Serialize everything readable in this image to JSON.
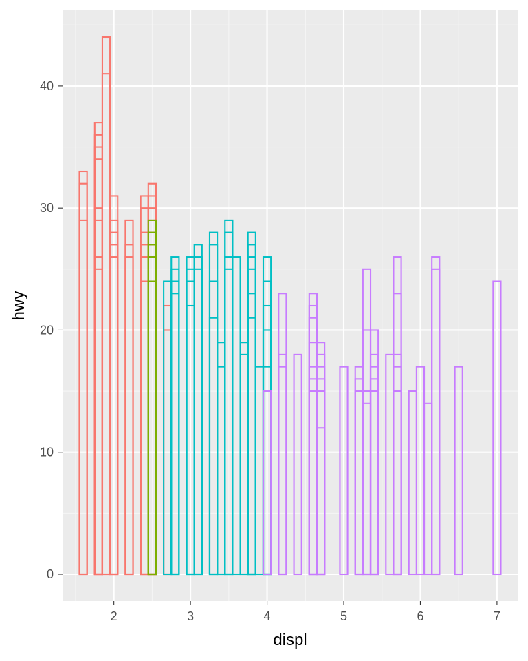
{
  "chart_data": {
    "type": "bar",
    "title": "",
    "xlabel": "displ",
    "ylabel": "hwy",
    "xlim": [
      1.33,
      7.27
    ],
    "ylim": [
      -2.2,
      46.2
    ],
    "x_ticks": [
      2,
      3,
      4,
      5,
      6,
      7
    ],
    "y_ticks": [
      0,
      10,
      20,
      30,
      40
    ],
    "grid": true,
    "legend": "none",
    "bar_width": 0.1,
    "style": "outlined stacked bars, one outlined segment per observation",
    "colors": {
      "panel_background": "#ebebeb",
      "grid_major": "#ffffff",
      "grid_minor": "#f5f5f5",
      "tick": "#333333",
      "tick_text": "#4d4d4d",
      "title_text": "#000000",
      "group_1": "#f8766d",
      "group_2": "#7cae00",
      "group_3": "#00bfc4",
      "group_4": "#c77cff"
    },
    "series": [
      {
        "group": 1,
        "points": [
          {
            "x": 1.6,
            "hwy": [
              29,
              32,
              33
            ]
          },
          {
            "x": 1.8,
            "hwy": [
              25,
              26,
              29,
              30,
              34,
              35,
              36,
              37
            ]
          },
          {
            "x": 1.9,
            "hwy": [
              41,
              44
            ]
          },
          {
            "x": 2.0,
            "hwy": [
              26,
              27,
              28,
              29,
              31
            ]
          },
          {
            "x": 2.2,
            "hwy": [
              26,
              27,
              29
            ]
          },
          {
            "x": 2.4,
            "hwy": [
              24,
              26,
              27,
              28,
              30,
              31
            ]
          },
          {
            "x": 2.5,
            "hwy": [
              24,
              26,
              27,
              28,
              29,
              30,
              31,
              32
            ]
          },
          {
            "x": 2.7,
            "hwy": [
              20,
              22
            ]
          }
        ]
      },
      {
        "group": 2,
        "points": [
          {
            "x": 2.5,
            "hwy": [
              24,
              26,
              27,
              28,
              29
            ]
          }
        ]
      },
      {
        "group": 3,
        "points": [
          {
            "x": 2.7,
            "hwy": [
              24
            ]
          },
          {
            "x": 2.8,
            "hwy": [
              23,
              24,
              25,
              26
            ]
          },
          {
            "x": 3.0,
            "hwy": [
              22,
              24,
              25,
              26
            ]
          },
          {
            "x": 3.1,
            "hwy": [
              25,
              26,
              27
            ]
          },
          {
            "x": 3.3,
            "hwy": [
              21,
              24,
              27,
              28
            ]
          },
          {
            "x": 3.4,
            "hwy": [
              17,
              19
            ]
          },
          {
            "x": 3.5,
            "hwy": [
              25,
              26,
              28,
              29
            ]
          },
          {
            "x": 3.6,
            "hwy": [
              26
            ]
          },
          {
            "x": 3.7,
            "hwy": [
              18,
              19
            ]
          },
          {
            "x": 3.8,
            "hwy": [
              21,
              23,
              25,
              26,
              27,
              28
            ]
          },
          {
            "x": 3.9,
            "hwy": [
              17
            ]
          },
          {
            "x": 4.0,
            "hwy": [
              17,
              20,
              22,
              24,
              26
            ]
          }
        ]
      },
      {
        "group": 4,
        "points": [
          {
            "x": 4.0,
            "hwy": [
              15
            ]
          },
          {
            "x": 4.2,
            "hwy": [
              17,
              18,
              23
            ]
          },
          {
            "x": 4.4,
            "hwy": [
              18
            ]
          },
          {
            "x": 4.6,
            "hwy": [
              15,
              16,
              17,
              19,
              21,
              22,
              23
            ]
          },
          {
            "x": 4.7,
            "hwy": [
              12,
              15,
              16,
              17,
              18,
              19
            ]
          },
          {
            "x": 5.0,
            "hwy": [
              17
            ]
          },
          {
            "x": 5.2,
            "hwy": [
              15,
              16,
              17
            ]
          },
          {
            "x": 5.3,
            "hwy": [
              14,
              15,
              20,
              25
            ]
          },
          {
            "x": 5.4,
            "hwy": [
              15,
              16,
              17,
              18,
              20
            ]
          },
          {
            "x": 5.6,
            "hwy": [
              18
            ]
          },
          {
            "x": 5.7,
            "hwy": [
              15,
              17,
              18,
              23,
              26
            ]
          },
          {
            "x": 5.9,
            "hwy": [
              15
            ]
          },
          {
            "x": 6.0,
            "hwy": [
              17
            ]
          },
          {
            "x": 6.1,
            "hwy": [
              14
            ]
          },
          {
            "x": 6.2,
            "hwy": [
              25,
              26
            ]
          },
          {
            "x": 6.5,
            "hwy": [
              17
            ]
          },
          {
            "x": 7.0,
            "hwy": [
              24
            ]
          }
        ]
      }
    ]
  }
}
